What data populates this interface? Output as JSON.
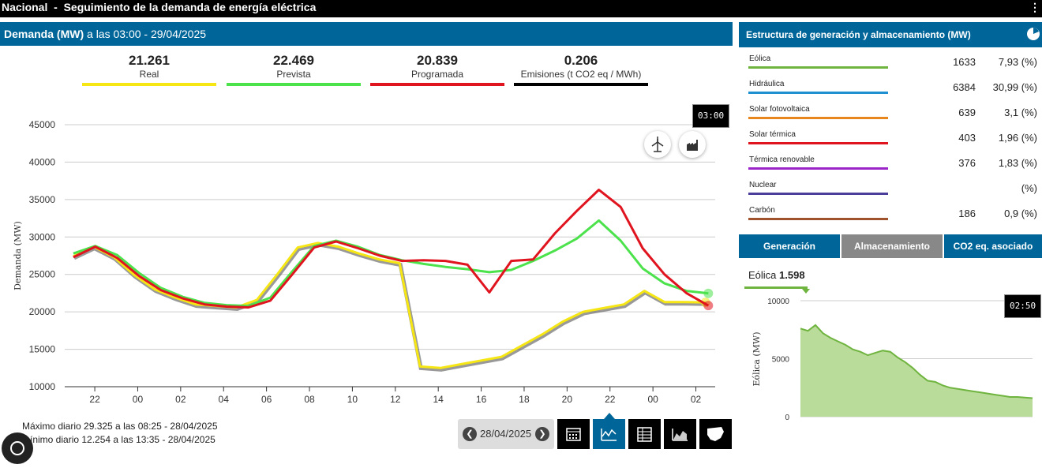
{
  "header": {
    "title": "Nacional  -  Seguimiento de la demanda de energía eléctrica",
    "menu_icon": "menu-icon"
  },
  "demand_panel": {
    "title_bold": "Demanda (MW)",
    "title_rest": " a las 03:00 - 29/04/2025"
  },
  "kpis": [
    {
      "value": "21.261",
      "label": "Real",
      "color": "#f5e614"
    },
    {
      "value": "22.469",
      "label": "Prevista",
      "color": "#4ce24c"
    },
    {
      "value": "20.839",
      "label": "Programada",
      "color": "#e0141e"
    },
    {
      "value": "0.206",
      "label": "Emisiones (t CO2 eq / MWh)",
      "color": "#000000"
    }
  ],
  "tooltip_main": "03:00",
  "tooltip_mini": "02:50",
  "footer": {
    "max": "Máximo diario 29.325 a las 08:25 - 28/04/2025",
    "min": "ínimo diario 12.254 a las 13:35 - 28/04/2025",
    "date": "28/04/2025"
  },
  "chart_data": {
    "type": "line",
    "ylabel": "Demanda (MW)",
    "ylim": [
      10000,
      45000
    ],
    "yticks": [
      "45000",
      "40000",
      "35000",
      "30000",
      "25000",
      "20000",
      "15000",
      "10000"
    ],
    "xticks": [
      "22",
      "00",
      "02",
      "04",
      "06",
      "08",
      "10",
      "12",
      "14",
      "16",
      "18",
      "20",
      "22",
      "00",
      "02"
    ],
    "x_hours": [
      21,
      22,
      23,
      24,
      25,
      26,
      27,
      28,
      29,
      30,
      31,
      32,
      33,
      34,
      35,
      36,
      37,
      38,
      39,
      40,
      41,
      42,
      43,
      44,
      45,
      46,
      47,
      48,
      49,
      50,
      51,
      52,
      53,
      54,
      55,
      56,
      57
    ],
    "series": [
      {
        "name": "Real",
        "color": "#f5e614",
        "values": [
          27400,
          28700,
          27300,
          24900,
          23000,
          21900,
          21000,
          20800,
          20600,
          21600,
          25000,
          28600,
          29200,
          28700,
          27800,
          27000,
          26500,
          12700,
          12500,
          13000,
          13500,
          14000,
          15500,
          17000,
          18700,
          20000,
          20500,
          21000,
          22800,
          21300,
          21300,
          21261,
          null,
          null,
          null,
          null,
          null
        ]
      },
      {
        "name": "Prevista",
        "color": "#4ce24c",
        "values": [
          27800,
          28800,
          27600,
          25200,
          23200,
          22000,
          21200,
          20900,
          20800,
          21900,
          25400,
          28800,
          29500,
          28700,
          27600,
          26900,
          26400,
          26000,
          25700,
          25300,
          25600,
          26800,
          28200,
          29800,
          32200,
          29500,
          25800,
          23800,
          22800,
          22469,
          null,
          null,
          null,
          null,
          null,
          null,
          null
        ]
      },
      {
        "name": "Programada",
        "color": "#e0141e",
        "values": [
          27300,
          28700,
          27200,
          24800,
          22900,
          21800,
          21000,
          20700,
          20600,
          21500,
          25000,
          28600,
          29400,
          28500,
          27500,
          26800,
          26900,
          26800,
          26300,
          22600,
          26800,
          27000,
          30500,
          33500,
          36300,
          34000,
          28500,
          25000,
          22500,
          20839,
          null,
          null,
          null,
          null,
          null,
          null,
          null
        ]
      }
    ]
  },
  "structure": {
    "title": "Estructura de generación y almacenamiento (MW)",
    "rows": [
      {
        "name": "Eólica",
        "mw": "1633",
        "pct": "7,93 (%)",
        "color": "#6fb43f"
      },
      {
        "name": "Hidráulica",
        "mw": "6384",
        "pct": "30,99 (%)",
        "color": "#1e8fd0"
      },
      {
        "name": "Solar fotovoltaica",
        "mw": "639",
        "pct": "3,1 (%)",
        "color": "#e8861e"
      },
      {
        "name": "Solar térmica",
        "mw": "403",
        "pct": "1,96 (%)",
        "color": "#e0141e"
      },
      {
        "name": "Térmica renovable",
        "mw": "376",
        "pct": "1,83 (%)",
        "color": "#9b25c8"
      },
      {
        "name": "Nuclear",
        "mw": "",
        "pct": "(%)",
        "color": "#4b3e9a"
      },
      {
        "name": "Carbón",
        "mw": "186",
        "pct": "0,9 (%)",
        "color": "#a0522d"
      }
    ]
  },
  "tabs": [
    {
      "label": "Generación",
      "color": "#006699"
    },
    {
      "label": "Almacenamiento",
      "color": "#888888"
    },
    {
      "label": "CO2 eq. asociado",
      "color": "#006699"
    }
  ],
  "mini": {
    "label": "Eólica ",
    "value": "1.598",
    "ylabel": "Eólica (MW)",
    "yticks": [
      "10000",
      "5000",
      "0"
    ]
  }
}
